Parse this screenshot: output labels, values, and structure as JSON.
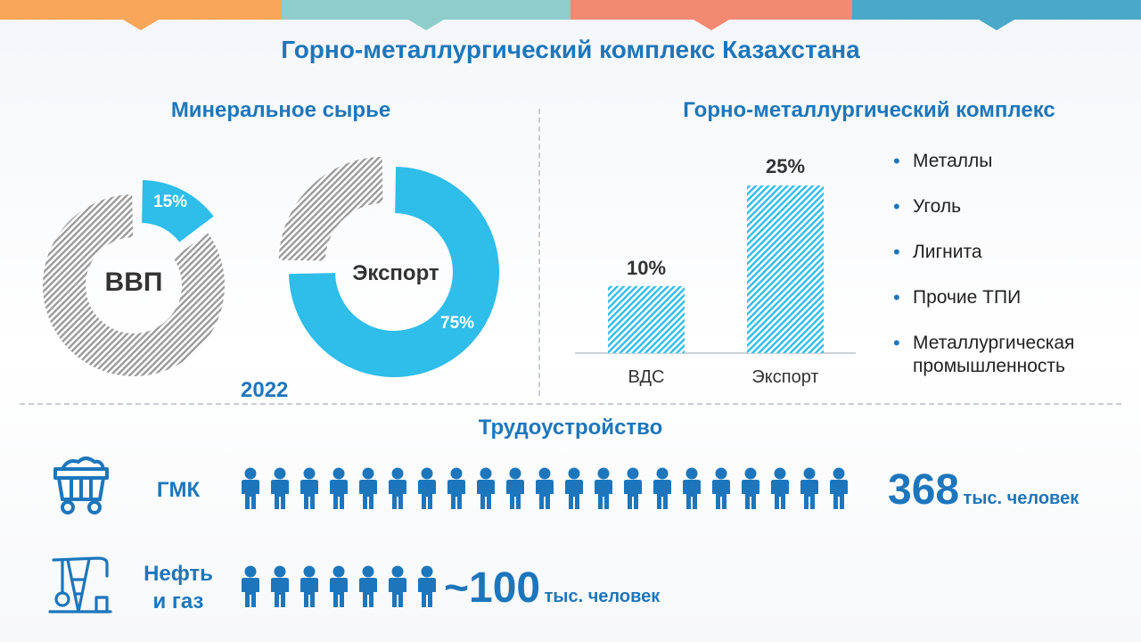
{
  "title": "Горно-металлургический комплекс Казахстана",
  "colors": {
    "accent": "#1d76bc",
    "cyan": "#2fbdea",
    "hatch_grey": "#9a9a9a",
    "topbar": [
      "#f8a65a",
      "#8ecdcb",
      "#f28a72",
      "#4aa8c8"
    ]
  },
  "mineral": {
    "subtitle": "Минеральное сырье",
    "year": "2022"
  },
  "gmk": {
    "subtitle": "Горно-металлургический  комплекс"
  },
  "chart_data": [
    {
      "type": "pie",
      "variant": "donut",
      "center_label": "ВВП",
      "slices": [
        {
          "name": "",
          "value": 15,
          "label": "15%",
          "color": "#2fbdea",
          "exploded": true
        },
        {
          "name": "",
          "value": 85,
          "color": "#9a9a9a",
          "pattern": "hatched"
        }
      ]
    },
    {
      "type": "pie",
      "variant": "donut",
      "center_label": "Экспорт",
      "slices": [
        {
          "name": "",
          "value": 75,
          "label": "75%",
          "color": "#2fbdea"
        },
        {
          "name": "",
          "value": 25,
          "color": "#9a9a9a",
          "pattern": "hatched",
          "exploded": true
        }
      ]
    },
    {
      "type": "bar",
      "categories": [
        "ВДС",
        "Экспорт"
      ],
      "values": [
        10,
        25
      ],
      "data_labels": [
        "10%",
        "25%"
      ],
      "color": "#2fbdea",
      "pattern": "hatched",
      "ylim": [
        0,
        25
      ]
    }
  ],
  "legend_items": [
    "Металлы",
    "Уголь",
    "Лигнита",
    "Прочие ТПИ",
    "Металлургическая промышленность"
  ],
  "employment": {
    "title": "Трудоустройство",
    "rows": [
      {
        "label": "ГМК",
        "icon": "mine-cart-icon",
        "value": "368",
        "unit": "тыс. человек",
        "people_count": 21
      },
      {
        "label": "Нефть\nи газ",
        "icon": "oil-pump-icon",
        "value": "~100",
        "unit": "тыс. человек",
        "people_count": 7
      }
    ]
  }
}
